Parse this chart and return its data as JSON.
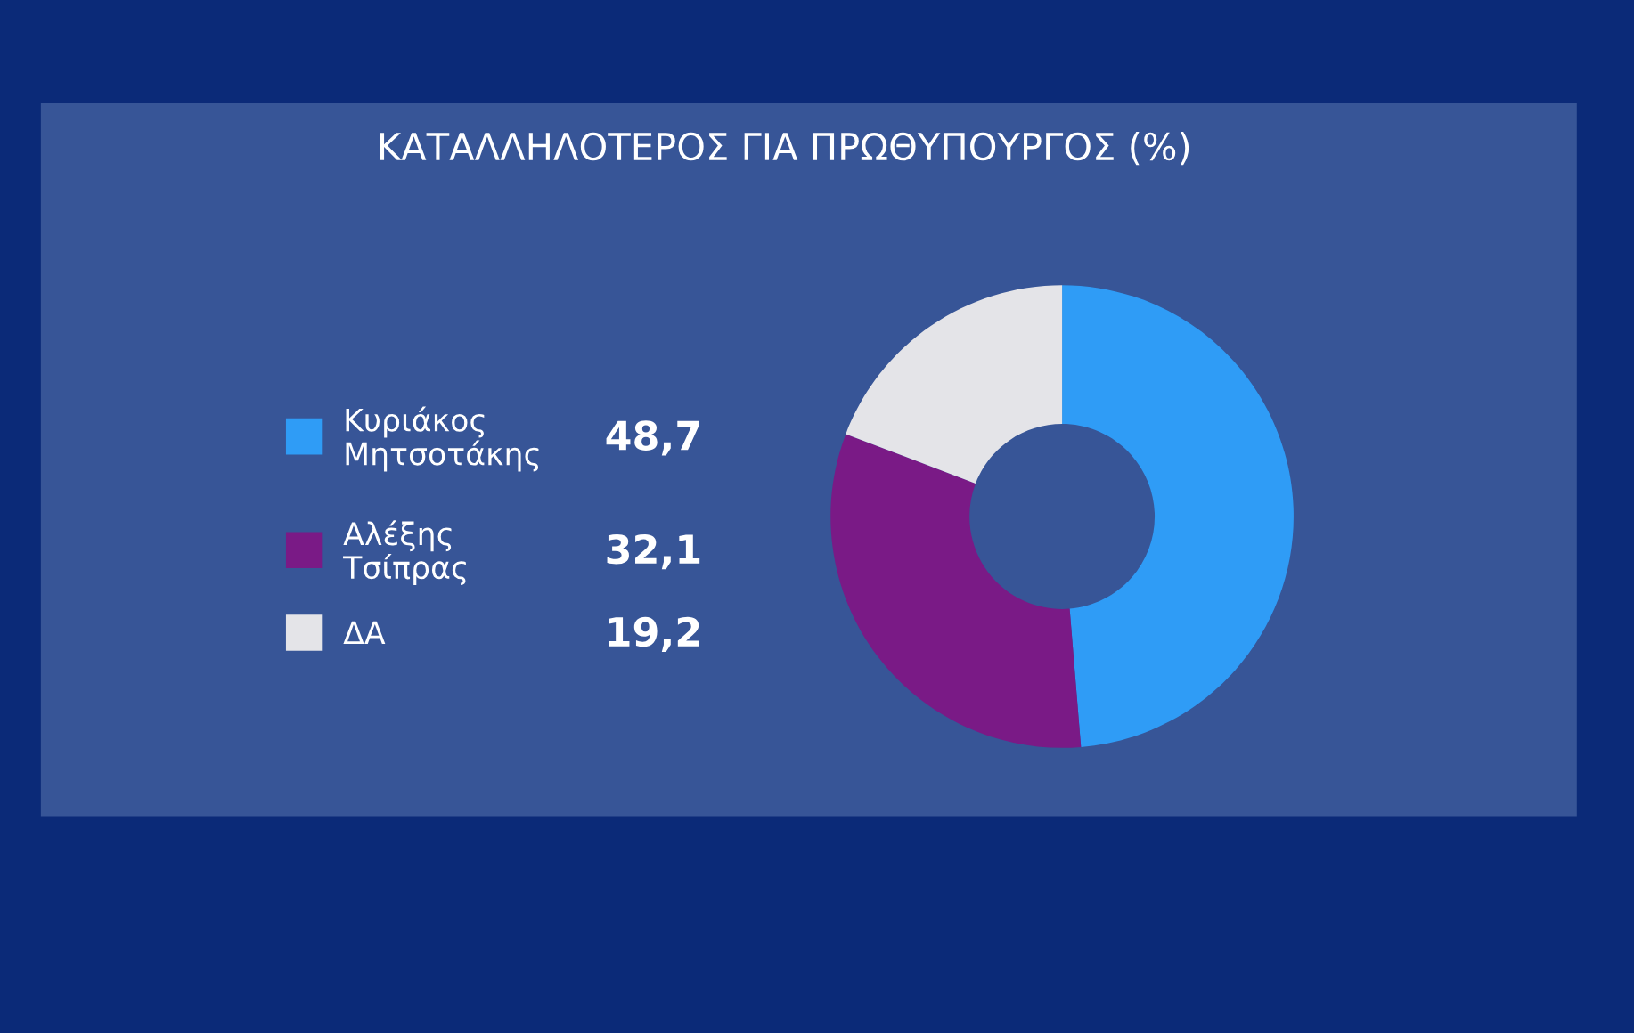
{
  "chart_data": {
    "type": "donut",
    "title": "ΚΑΤΑΛΛΗΛΟΤΕΡΟΣ ΓΙΑ ΠΡΩΘΥΠΟΥΡΓΟΣ (%)",
    "categories": [
      "Κυριάκος\nΜητσοτάκης",
      "Αλέξης\nΤσίπρας",
      "ΔΑ"
    ],
    "values": [
      48.7,
      32.1,
      19.2
    ],
    "colors": [
      "#2f9cf6",
      "#7a1a86",
      "#e4e4e8"
    ],
    "value_labels": [
      "48,7",
      "32,1",
      "19,2"
    ],
    "legend": "left"
  }
}
